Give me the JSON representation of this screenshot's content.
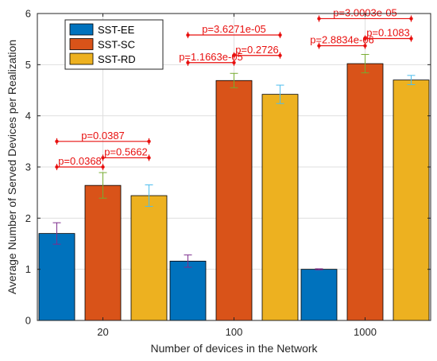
{
  "chart_data": {
    "type": "bar",
    "xlabel": "Number of devices in the Network",
    "ylabel": "Average Number of Served Devices per Realization",
    "categories": [
      "20",
      "100",
      "1000"
    ],
    "ylim": [
      0,
      6
    ],
    "yticks": [
      0,
      1,
      2,
      3,
      4,
      5,
      6
    ],
    "grid": true,
    "legend_position": "top-left",
    "series": [
      {
        "name": "SST-EE",
        "color": "#0072BD",
        "error_color": "#7E2F8E",
        "values": [
          1.7,
          1.16,
          1.0
        ],
        "errors": [
          0.21,
          0.12,
          0.01
        ]
      },
      {
        "name": "SST-SC",
        "color": "#D95319",
        "error_color": "#77AC30",
        "values": [
          2.64,
          4.69,
          5.02
        ],
        "errors": [
          0.25,
          0.14,
          0.18
        ]
      },
      {
        "name": "SST-RD",
        "color": "#EDB120",
        "error_color": "#4DBEEE",
        "values": [
          2.44,
          4.42,
          4.7
        ],
        "errors": [
          0.21,
          0.18,
          0.09
        ]
      }
    ],
    "annotations": [
      {
        "group": 0,
        "from": 0,
        "to": 1,
        "y": 3.0,
        "text": "p=0.0368"
      },
      {
        "group": 0,
        "from": 1,
        "to": 2,
        "y": 3.18,
        "text": "p=0.5662"
      },
      {
        "group": 0,
        "from": 0,
        "to": 2,
        "y": 3.5,
        "text": "p=0.0387"
      },
      {
        "group": 1,
        "from": 0,
        "to": 1,
        "y": 5.04,
        "text": "p=1.1663e-05"
      },
      {
        "group": 1,
        "from": 1,
        "to": 2,
        "y": 5.18,
        "text": "p=0.2726"
      },
      {
        "group": 1,
        "from": 0,
        "to": 2,
        "y": 5.58,
        "text": "p=3.6271e-05"
      },
      {
        "group": 2,
        "from": 0,
        "to": 1,
        "y": 5.37,
        "text": "p=2.8834e-06"
      },
      {
        "group": 2,
        "from": 1,
        "to": 2,
        "y": 5.51,
        "text": "p=0.1083"
      },
      {
        "group": 2,
        "from": 0,
        "to": 2,
        "y": 5.9,
        "text": "p=3.0003e-05"
      }
    ],
    "annotation_color": "#e8100f"
  }
}
